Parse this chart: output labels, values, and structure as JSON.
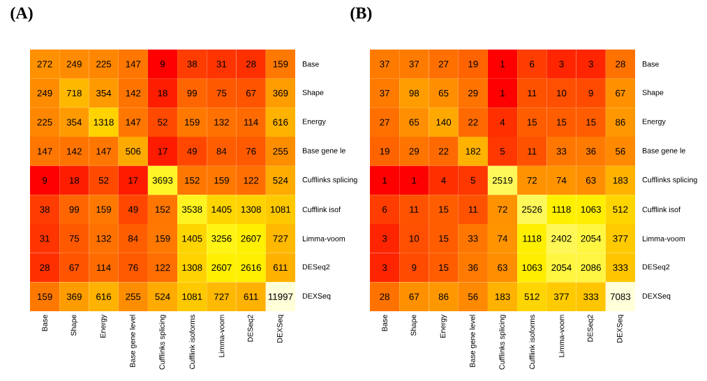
{
  "chart_data": [
    {
      "type": "heatmap",
      "title": "(A)",
      "data_labels": true,
      "categories": [
        "Base",
        "Shape",
        "Energy",
        "Base gene level",
        "Cufflinks splicing",
        "Cufflink isoforms",
        "Limma-voom",
        "DESeq2",
        "DEXSeq"
      ],
      "y_categories": [
        "Base",
        "Shape",
        "Energy",
        "Base gene le",
        "Cufflinks splicing",
        "Cufflink isof",
        "Limma-voom",
        "DESeq2",
        "DEXSeq"
      ],
      "cells": [
        [
          272,
          249,
          225,
          147,
          9,
          38,
          31,
          28,
          159
        ],
        [
          249,
          718,
          354,
          142,
          18,
          99,
          75,
          67,
          369
        ],
        [
          225,
          354,
          1318,
          147,
          52,
          159,
          132,
          114,
          616
        ],
        [
          147,
          142,
          147,
          506,
          17,
          49,
          84,
          76,
          255
        ],
        [
          9,
          18,
          52,
          17,
          3693,
          152,
          159,
          122,
          524
        ],
        [
          38,
          99,
          159,
          49,
          152,
          3538,
          1405,
          1308,
          1081
        ],
        [
          31,
          75,
          132,
          84,
          159,
          1405,
          3256,
          2607,
          727
        ],
        [
          28,
          67,
          114,
          76,
          122,
          1308,
          2607,
          2616,
          611
        ],
        [
          159,
          369,
          616,
          255,
          524,
          1081,
          727,
          611,
          11997
        ]
      ]
    },
    {
      "type": "heatmap",
      "title": "(B)",
      "data_labels": true,
      "categories": [
        "Base",
        "Shape",
        "Energy",
        "Base gene level",
        "Cufflinks splicing",
        "Cufflink isoforms",
        "Limma-voom",
        "DESeq2",
        "DEXSeq"
      ],
      "y_categories": [
        "Base",
        "Shape",
        "Energy",
        "Base gene le",
        "Cufflinks splicing",
        "Cufflink isof",
        "Limma-voom",
        "DESeq2",
        "DEXSeq"
      ],
      "cells": [
        [
          37,
          37,
          27,
          19,
          1,
          6,
          3,
          3,
          28
        ],
        [
          37,
          98,
          65,
          29,
          1,
          11,
          10,
          9,
          67
        ],
        [
          27,
          65,
          140,
          22,
          4,
          15,
          15,
          15,
          86
        ],
        [
          19,
          29,
          22,
          182,
          5,
          11,
          33,
          36,
          56
        ],
        [
          1,
          1,
          4,
          5,
          2519,
          72,
          74,
          63,
          183
        ],
        [
          6,
          11,
          15,
          11,
          72,
          2526,
          1118,
          1063,
          512
        ],
        [
          3,
          10,
          15,
          33,
          74,
          1118,
          2402,
          2054,
          377
        ],
        [
          3,
          9,
          15,
          36,
          63,
          1063,
          2054,
          2086,
          333
        ],
        [
          28,
          67,
          86,
          56,
          183,
          512,
          377,
          333,
          7083
        ]
      ]
    }
  ]
}
